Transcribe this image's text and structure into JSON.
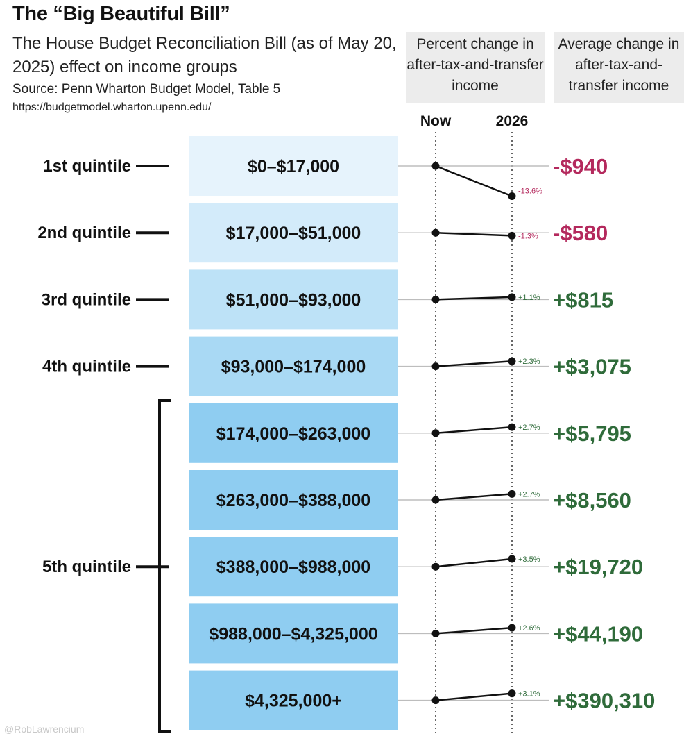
{
  "chart_data": {
    "type": "slope",
    "title": "The “Big Beautiful Bill”",
    "subtitle": "The House Budget Reconciliation Bill (as of May 20, 2025) effect on income groups",
    "source": "Source: Penn Wharton Budget Model, Table 5",
    "source_url": "https://budgetmodel.wharton.upenn.edu/",
    "column_headers": {
      "percent": "Percent change in after-tax-and-transfer income",
      "average": "Average change in after-tax-and-transfer income"
    },
    "x": [
      "Now",
      "2026"
    ],
    "quintile_labels": [
      {
        "label": "1st quintile",
        "row": 0
      },
      {
        "label": "2nd quintile",
        "row": 1
      },
      {
        "label": "3rd quintile",
        "row": 2
      },
      {
        "label": "4th quintile",
        "row": 3
      },
      {
        "label": "5th quintile",
        "row": 6
      }
    ],
    "rows": [
      {
        "bracket": "$0–$17,000",
        "percent": -13.6,
        "percent_label": "-13.6%",
        "avg_label": "-$940"
      },
      {
        "bracket": "$17,000–$51,000",
        "percent": -1.3,
        "percent_label": "-1.3%",
        "avg_label": "-$580"
      },
      {
        "bracket": "$51,000–$93,000",
        "percent": 1.1,
        "percent_label": "+1.1%",
        "avg_label": "+$815"
      },
      {
        "bracket": "$93,000–$174,000",
        "percent": 2.3,
        "percent_label": "+2.3%",
        "avg_label": "+$3,075"
      },
      {
        "bracket": "$174,000–$263,000",
        "percent": 2.7,
        "percent_label": "+2.7%",
        "avg_label": "+$5,795"
      },
      {
        "bracket": "$263,000–$388,000",
        "percent": 2.7,
        "percent_label": "+2.7%",
        "avg_label": "+$8,560"
      },
      {
        "bracket": "$388,000–$988,000",
        "percent": 3.5,
        "percent_label": "+3.5%",
        "avg_label": "+$19,720"
      },
      {
        "bracket": "$988,000–$4,325,000",
        "percent": 2.6,
        "percent_label": "+2.6%",
        "avg_label": "+$44,190"
      },
      {
        "bracket": "$4,325,000+",
        "percent": 3.1,
        "percent_label": "+3.1%",
        "avg_label": "+$390,310"
      }
    ],
    "colors": {
      "negative": "#b4295d",
      "positive": "#2f6b3a",
      "box_shades": [
        "#e6f3fc",
        "#d3ebfa",
        "#bde2f7",
        "#a9d9f4",
        "#8fcdf1",
        "#8fcdf1",
        "#8fcdf1",
        "#8fcdf1",
        "#8fcdf1"
      ]
    },
    "watermark": "@RobLawrencium"
  }
}
